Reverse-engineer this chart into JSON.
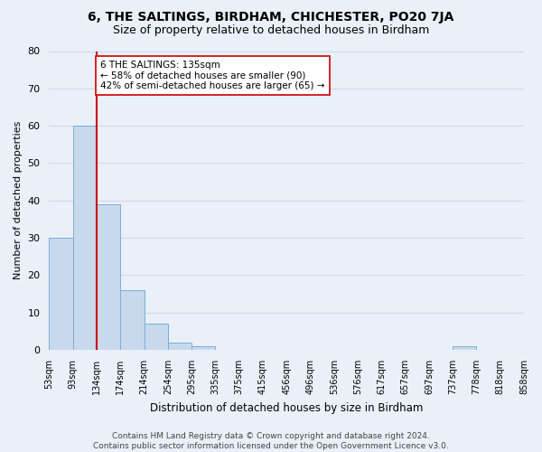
{
  "title": "6, THE SALTINGS, BIRDHAM, CHICHESTER, PO20 7JA",
  "subtitle": "Size of property relative to detached houses in Birdham",
  "xlabel": "Distribution of detached houses by size in Birdham",
  "ylabel": "Number of detached properties",
  "bar_values": [
    30,
    60,
    39,
    16,
    7,
    2,
    1,
    0,
    0,
    0,
    0,
    0,
    0,
    0,
    0,
    0,
    0,
    1,
    0,
    0
  ],
  "bin_labels": [
    "53sqm",
    "93sqm",
    "134sqm",
    "174sqm",
    "214sqm",
    "254sqm",
    "295sqm",
    "335sqm",
    "375sqm",
    "415sqm",
    "456sqm",
    "496sqm",
    "536sqm",
    "576sqm",
    "617sqm",
    "657sqm",
    "697sqm",
    "737sqm",
    "778sqm",
    "818sqm",
    "858sqm"
  ],
  "bar_color": "#c8d9ee",
  "bar_edge_color": "#7aaed4",
  "grid_color": "#d0d8e8",
  "background_color": "#eaf0f8",
  "vline_x": 2.0,
  "vline_color": "#cc0000",
  "annotation_text": "6 THE SALTINGS: 135sqm\n← 58% of detached houses are smaller (90)\n42% of semi-detached houses are larger (65) →",
  "annotation_box_color": "#ffffff",
  "annotation_box_edge_color": "#cc0000",
  "ylim": [
    0,
    80
  ],
  "yticks": [
    0,
    10,
    20,
    30,
    40,
    50,
    60,
    70,
    80
  ],
  "footnote": "Contains HM Land Registry data © Crown copyright and database right 2024.\nContains public sector information licensed under the Open Government Licence v3.0.",
  "title_fontsize": 10,
  "subtitle_fontsize": 9,
  "ylabel_fontsize": 8,
  "xlabel_fontsize": 8.5,
  "annotation_fontsize": 7.5,
  "tick_fontsize": 7,
  "footnote_fontsize": 6.5,
  "num_bars": 20
}
